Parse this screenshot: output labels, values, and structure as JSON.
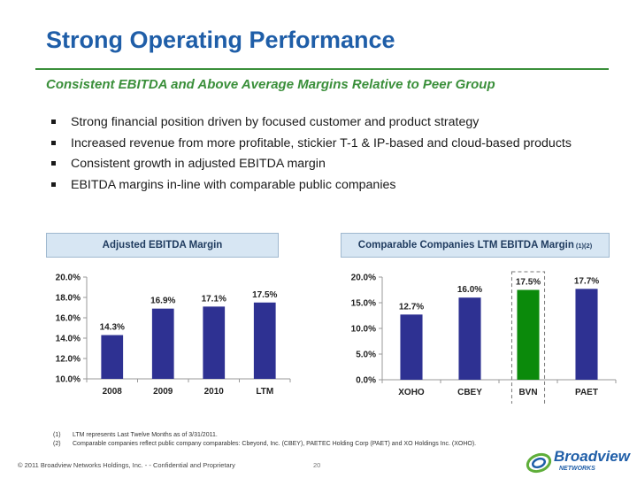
{
  "title": "Strong Operating Performance",
  "subtitle": "Consistent EBITDA and Above Average Margins Relative to Peer Group",
  "bullets": [
    "Strong financial position driven by focused customer and product strategy",
    "Increased revenue from more profitable, stickier T-1 & IP-based and cloud-based products",
    "Consistent growth in adjusted EBITDA margin",
    "EBITDA margins in-line with comparable public companies"
  ],
  "panels": {
    "left_title": "Adjusted EBITDA Margin",
    "right_title": "Comparable Companies LTM EBITDA Margin",
    "right_title_sup": "(1)(2)"
  },
  "chart_data": [
    {
      "type": "bar",
      "title": "Adjusted EBITDA Margin",
      "categories": [
        "2008",
        "2009",
        "2010",
        "LTM"
      ],
      "values": [
        14.3,
        16.9,
        17.1,
        17.5
      ],
      "data_labels": [
        "14.3%",
        "16.9%",
        "17.1%",
        "17.5%"
      ],
      "ylim": [
        10.0,
        20.0
      ],
      "yticks": [
        10.0,
        12.0,
        14.0,
        16.0,
        18.0,
        20.0
      ],
      "ytick_labels": [
        "10.0%",
        "12.0%",
        "14.0%",
        "16.0%",
        "18.0%",
        "20.0%"
      ],
      "xlabel": "",
      "ylabel": "",
      "grid": false,
      "bar_color": "#2e3192"
    },
    {
      "type": "bar",
      "title": "Comparable Companies LTM EBITDA Margin",
      "categories": [
        "XOHO",
        "CBEY",
        "BVN",
        "PAET"
      ],
      "values": [
        12.7,
        16.0,
        17.5,
        17.7
      ],
      "data_labels": [
        "12.7%",
        "16.0%",
        "17.5%",
        "17.7%"
      ],
      "ylim": [
        0.0,
        20.0
      ],
      "yticks": [
        0.0,
        5.0,
        10.0,
        15.0,
        20.0
      ],
      "ytick_labels": [
        "0.0%",
        "5.0%",
        "10.0%",
        "15.0%",
        "20.0%"
      ],
      "xlabel": "",
      "ylabel": "",
      "grid": false,
      "bar_color": "#2e3192",
      "highlight": {
        "category": "BVN",
        "color": "#0b8a0b"
      }
    }
  ],
  "footnotes": [
    {
      "num": "(1)",
      "text": "LTM represents Last Twelve Months as of 3/31/2011."
    },
    {
      "num": "(2)",
      "text": "Comparable companies reflect public company comparables: Cbeyond, Inc. (CBEY), PAETEC Holding Corp (PAET) and XO Holdings Inc. (XOHO)."
    }
  ],
  "footer": {
    "copyright": "© 2011 Broadview Networks Holdings, Inc.  - -  Confidential and Proprietary",
    "page": "20",
    "logo_text": "Broadview",
    "logo_sub": "NETWORKS"
  },
  "colors": {
    "title": "#1f5ea8",
    "accent_green": "#3a8f3a",
    "bar": "#2e3192",
    "highlight_bar": "#0b8a0b",
    "panel_bg": "#d7e6f3"
  }
}
